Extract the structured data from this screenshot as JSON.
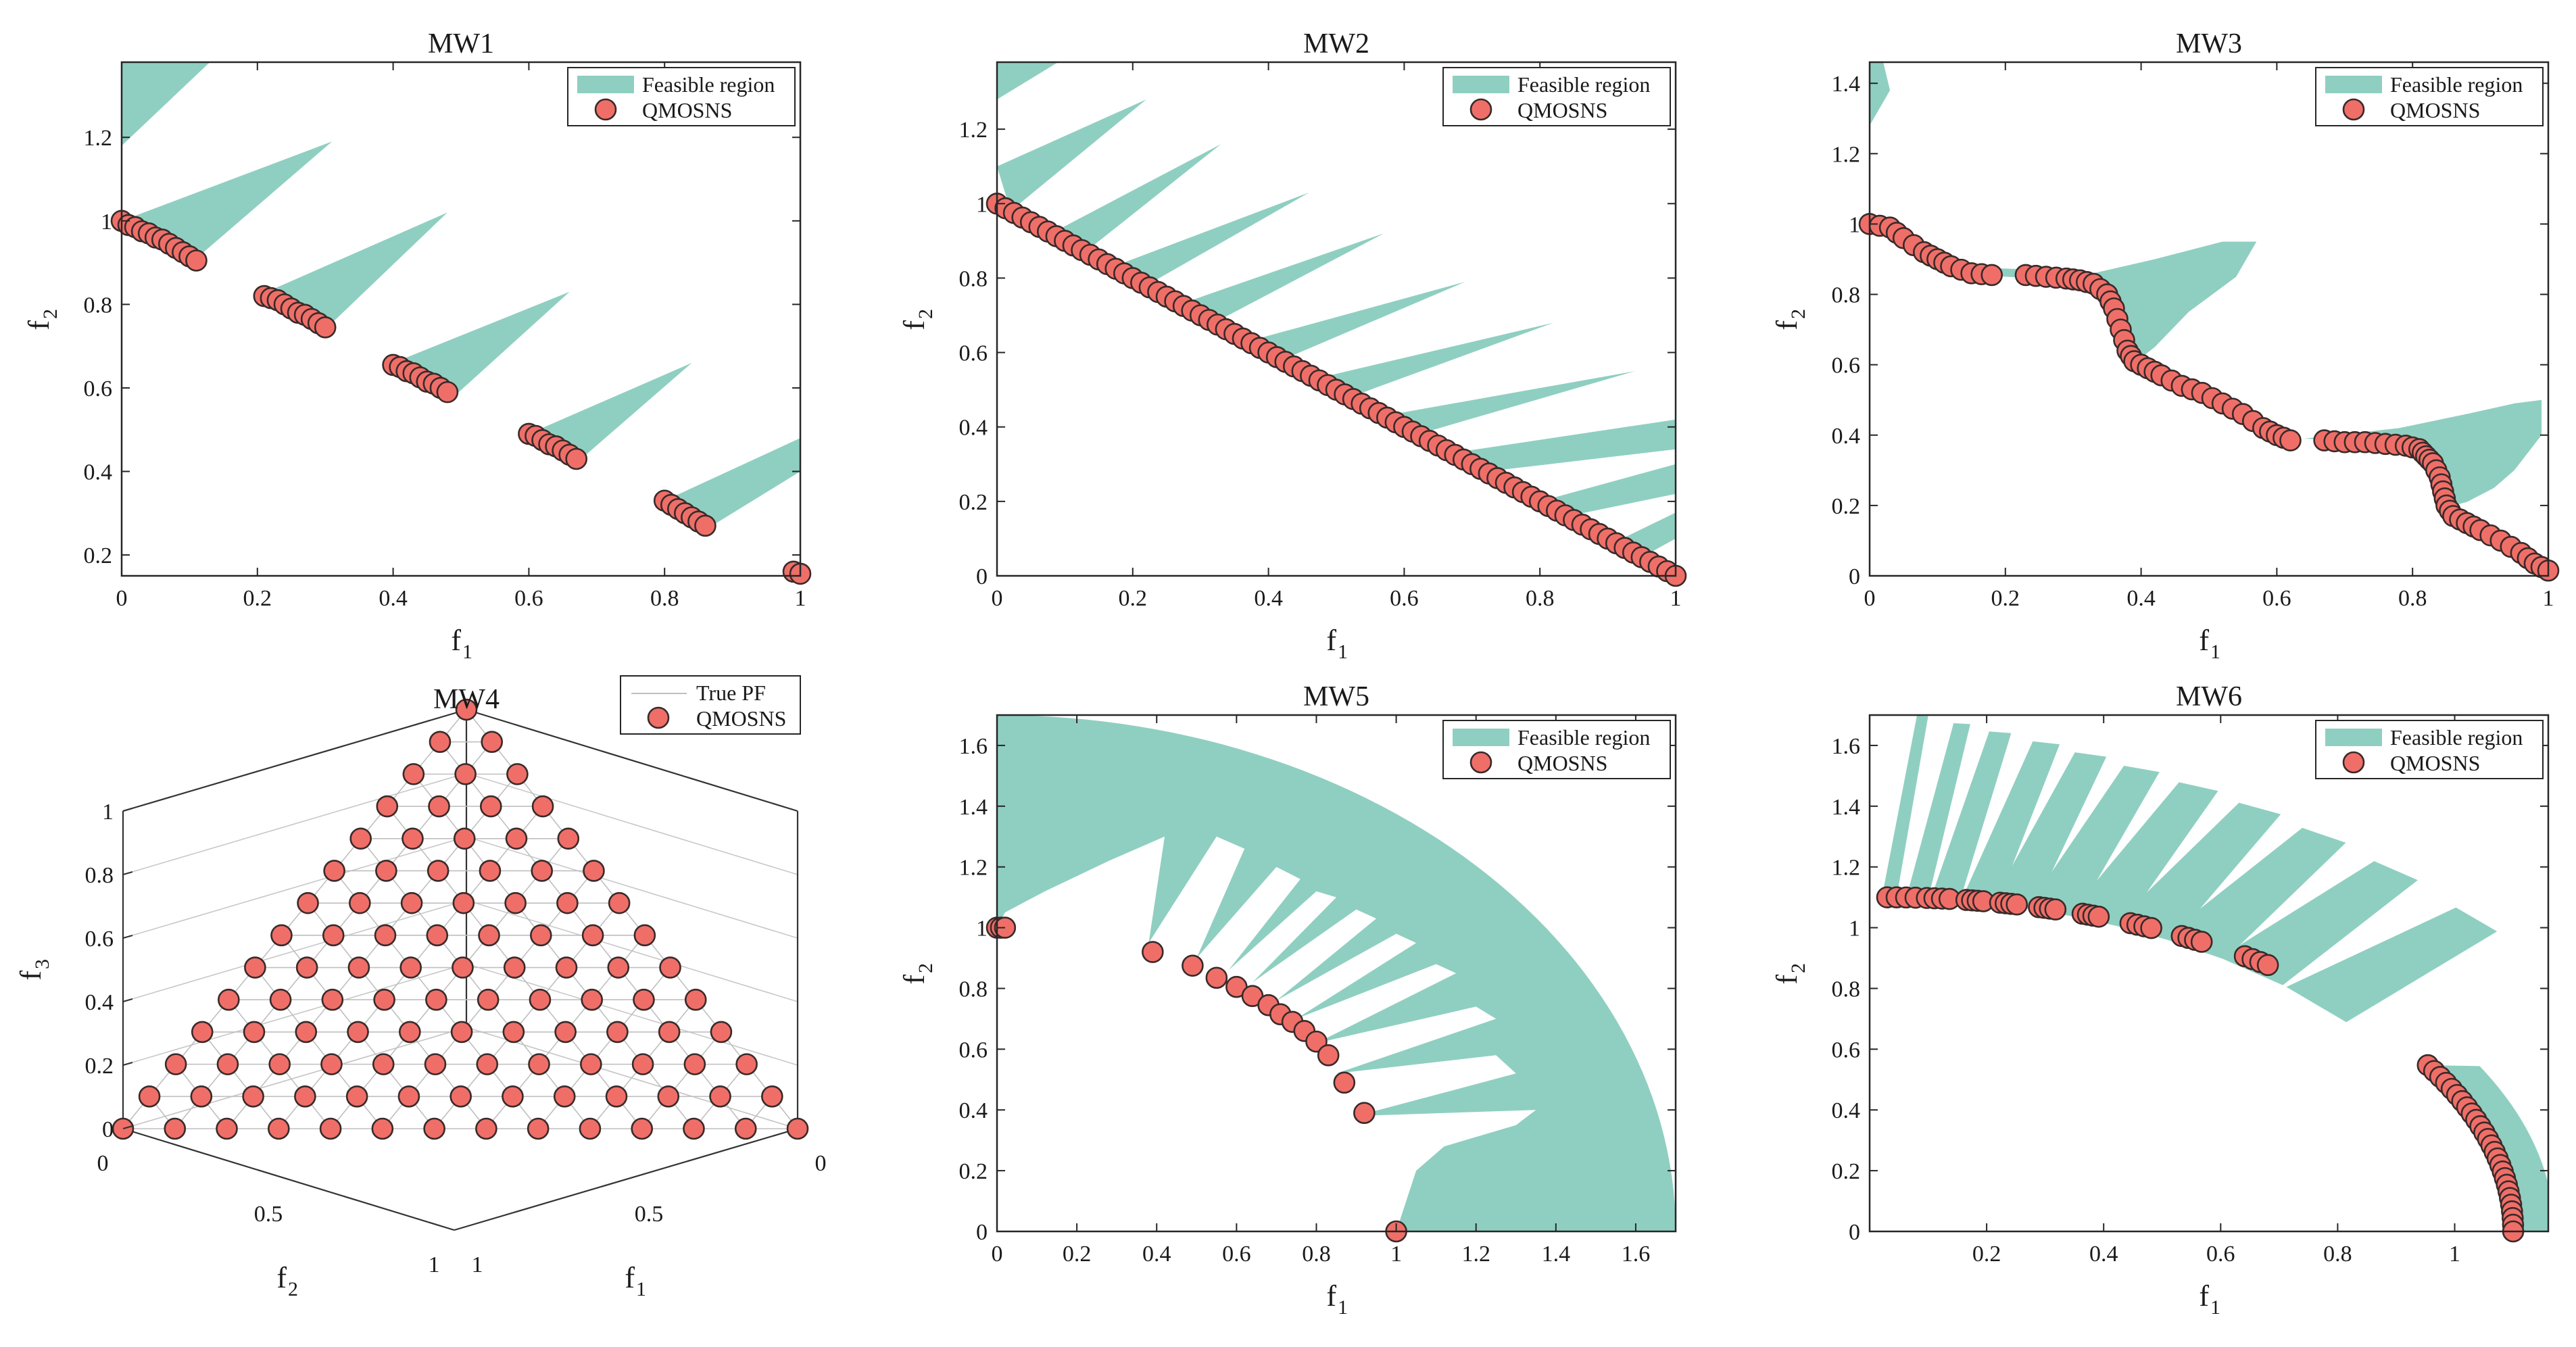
{
  "colors": {
    "feasible": "#8fcfc1",
    "marker_fill": "#ef6f68",
    "marker_edge": "#3a2a2a",
    "axes": "#262626"
  },
  "legend": {
    "feasible": "Feasible region",
    "algorithm": "QMOSNS",
    "true_pf": "True PF"
  },
  "chart_data": [
    {
      "id": "mw1",
      "type": "scatter",
      "title": "MW1",
      "xlabel": "f",
      "xlabel_sub": "1",
      "ylabel": "f",
      "ylabel_sub": "2",
      "xlim": [
        0,
        1
      ],
      "ylim": [
        0.15,
        1.38
      ],
      "xticks": [
        "0",
        "0.2",
        "0.4",
        "0.6",
        "0.8",
        "1"
      ],
      "yticks": [
        "0.2",
        "0.4",
        "0.6",
        "0.8",
        "1",
        "1.2"
      ],
      "legend": [
        "Feasible region",
        "QMOSNS"
      ],
      "feasible_regions": [
        [
          [
            0,
            1.18
          ],
          [
            0.13,
            1.38
          ],
          [
            0,
            1.38
          ]
        ],
        [
          [
            0,
            1.0
          ],
          [
            0.31,
            1.19
          ],
          [
            0.11,
            0.91
          ]
        ],
        [
          [
            0.2,
            0.82
          ],
          [
            0.48,
            1.02
          ],
          [
            0.3,
            0.74
          ]
        ],
        [
          [
            0.4,
            0.66
          ],
          [
            0.66,
            0.83
          ],
          [
            0.49,
            0.58
          ]
        ],
        [
          [
            0.6,
            0.49
          ],
          [
            0.84,
            0.66
          ],
          [
            0.67,
            0.42
          ]
        ],
        [
          [
            0.8,
            0.33
          ],
          [
            1.0,
            0.48
          ],
          [
            1.0,
            0.4
          ],
          [
            0.86,
            0.26
          ]
        ]
      ],
      "points": [
        [
          0.0,
          1.0
        ],
        [
          0.01,
          0.99
        ],
        [
          0.02,
          0.985
        ],
        [
          0.03,
          0.975
        ],
        [
          0.04,
          0.97
        ],
        [
          0.05,
          0.96
        ],
        [
          0.06,
          0.955
        ],
        [
          0.07,
          0.945
        ],
        [
          0.08,
          0.935
        ],
        [
          0.09,
          0.925
        ],
        [
          0.1,
          0.915
        ],
        [
          0.11,
          0.905
        ],
        [
          0.21,
          0.82
        ],
        [
          0.22,
          0.815
        ],
        [
          0.23,
          0.81
        ],
        [
          0.24,
          0.8
        ],
        [
          0.25,
          0.79
        ],
        [
          0.26,
          0.78
        ],
        [
          0.27,
          0.775
        ],
        [
          0.28,
          0.765
        ],
        [
          0.29,
          0.755
        ],
        [
          0.3,
          0.745
        ],
        [
          0.4,
          0.655
        ],
        [
          0.41,
          0.65
        ],
        [
          0.42,
          0.64
        ],
        [
          0.43,
          0.635
        ],
        [
          0.44,
          0.625
        ],
        [
          0.45,
          0.615
        ],
        [
          0.46,
          0.61
        ],
        [
          0.47,
          0.6
        ],
        [
          0.48,
          0.59
        ],
        [
          0.6,
          0.49
        ],
        [
          0.61,
          0.485
        ],
        [
          0.62,
          0.475
        ],
        [
          0.63,
          0.465
        ],
        [
          0.64,
          0.46
        ],
        [
          0.65,
          0.45
        ],
        [
          0.66,
          0.44
        ],
        [
          0.67,
          0.43
        ],
        [
          0.8,
          0.33
        ],
        [
          0.81,
          0.32
        ],
        [
          0.82,
          0.31
        ],
        [
          0.83,
          0.3
        ],
        [
          0.84,
          0.29
        ],
        [
          0.85,
          0.28
        ],
        [
          0.86,
          0.27
        ],
        [
          0.99,
          0.16
        ],
        [
          1.0,
          0.155
        ]
      ]
    },
    {
      "id": "mw2",
      "type": "scatter",
      "title": "MW2",
      "xlabel": "f",
      "xlabel_sub": "1",
      "ylabel": "f",
      "ylabel_sub": "2",
      "xlim": [
        0,
        1
      ],
      "ylim": [
        0,
        1.38
      ],
      "xticks": [
        "0",
        "0.2",
        "0.4",
        "0.6",
        "0.8",
        "1"
      ],
      "yticks": [
        "0",
        "0.2",
        "0.4",
        "0.6",
        "0.8",
        "1",
        "1.2"
      ],
      "legend": [
        "Feasible region",
        "QMOSNS"
      ],
      "feasible_regions": [
        [
          [
            0,
            1.28
          ],
          [
            0.09,
            1.38
          ],
          [
            0,
            1.38
          ]
        ],
        [
          [
            0,
            1.1
          ],
          [
            0.22,
            1.28
          ],
          [
            0.02,
            0.98
          ]
        ],
        [
          [
            0.08,
            0.92
          ],
          [
            0.33,
            1.16
          ],
          [
            0.13,
            0.87
          ]
        ],
        [
          [
            0.17,
            0.83
          ],
          [
            0.46,
            1.03
          ],
          [
            0.22,
            0.78
          ]
        ],
        [
          [
            0.27,
            0.73
          ],
          [
            0.57,
            0.92
          ],
          [
            0.32,
            0.68
          ]
        ],
        [
          [
            0.37,
            0.63
          ],
          [
            0.69,
            0.79
          ],
          [
            0.42,
            0.58
          ]
        ],
        [
          [
            0.47,
            0.53
          ],
          [
            0.82,
            0.68
          ],
          [
            0.52,
            0.48
          ]
        ],
        [
          [
            0.57,
            0.43
          ],
          [
            0.94,
            0.55
          ],
          [
            0.62,
            0.38
          ]
        ],
        [
          [
            0.67,
            0.33
          ],
          [
            1.0,
            0.42
          ],
          [
            1.0,
            0.34
          ],
          [
            0.72,
            0.28
          ]
        ],
        [
          [
            0.8,
            0.2
          ],
          [
            1.0,
            0.3
          ],
          [
            1.0,
            0.22
          ],
          [
            0.84,
            0.16
          ]
        ],
        [
          [
            0.91,
            0.09
          ],
          [
            1.0,
            0.17
          ],
          [
            1.0,
            0.1
          ],
          [
            0.95,
            0.05
          ]
        ]
      ],
      "points": "line:0,1,1,0,80"
    },
    {
      "id": "mw3",
      "type": "scatter",
      "title": "MW3",
      "xlabel": "f",
      "xlabel_sub": "1",
      "ylabel": "f",
      "ylabel_sub": "2",
      "xlim": [
        0,
        1
      ],
      "ylim": [
        0,
        1.46
      ],
      "xticks": [
        "0",
        "0.2",
        "0.4",
        "0.6",
        "0.8",
        "1"
      ],
      "yticks": [
        "0",
        "0.2",
        "0.4",
        "0.6",
        "0.8",
        "1",
        "1.2",
        "1.4"
      ],
      "legend": [
        "Feasible region",
        "QMOSNS"
      ],
      "feasible_regions": [
        [
          [
            0,
            1.28
          ],
          [
            0.03,
            1.38
          ],
          [
            0.02,
            1.46
          ],
          [
            0,
            1.46
          ]
        ],
        [
          [
            0.1,
            0.88
          ],
          [
            0.25,
            0.87
          ],
          [
            0.33,
            0.86
          ],
          [
            0.42,
            0.9
          ],
          [
            0.52,
            0.95
          ],
          [
            0.57,
            0.95
          ],
          [
            0.54,
            0.85
          ],
          [
            0.47,
            0.75
          ],
          [
            0.42,
            0.65
          ],
          [
            0.4,
            0.62
          ],
          [
            0.38,
            0.7
          ],
          [
            0.36,
            0.8
          ],
          [
            0.33,
            0.84
          ],
          [
            0.2,
            0.85
          ],
          [
            0.12,
            0.86
          ]
        ],
        [
          [
            0.64,
            0.39
          ],
          [
            0.78,
            0.42
          ],
          [
            0.88,
            0.46
          ],
          [
            0.95,
            0.49
          ],
          [
            0.99,
            0.5
          ],
          [
            0.99,
            0.4
          ],
          [
            0.95,
            0.3
          ],
          [
            0.92,
            0.25
          ],
          [
            0.88,
            0.21
          ],
          [
            0.86,
            0.2
          ],
          [
            0.85,
            0.28
          ],
          [
            0.83,
            0.36
          ],
          [
            0.78,
            0.38
          ]
        ]
      ],
      "points": "mw3"
    },
    {
      "id": "mw4",
      "type": "scatter3d",
      "title": "MW4",
      "xlabel": "f",
      "xlabel_sub": "1",
      "ylabel": "f",
      "ylabel_sub": "2",
      "zlabel": "f",
      "zlabel_sub": "3",
      "zticks": [
        "0",
        "0.2",
        "0.4",
        "0.6",
        "0.8",
        "1"
      ],
      "xticks": [
        "0",
        "0.5",
        "1"
      ],
      "yticks": [
        "0",
        "0.5",
        "1"
      ],
      "legend": [
        "True PF",
        "QMOSNS"
      ],
      "simplex_divisions": 13
    },
    {
      "id": "mw5",
      "type": "scatter",
      "title": "MW5",
      "xlabel": "f",
      "xlabel_sub": "1",
      "ylabel": "f",
      "ylabel_sub": "2",
      "xlim": [
        0,
        1.7
      ],
      "ylim": [
        0,
        1.7
      ],
      "xticks": [
        "0",
        "0.2",
        "0.4",
        "0.6",
        "0.8",
        "1",
        "1.2",
        "1.4",
        "1.6"
      ],
      "yticks": [
        "0",
        "0.2",
        "0.4",
        "0.6",
        "0.8",
        "1",
        "1.2",
        "1.4",
        "1.6"
      ],
      "legend": [
        "Feasible region",
        "QMOSNS"
      ],
      "points": [
        [
          0.0,
          1.0
        ],
        [
          0.01,
          1.0
        ],
        [
          0.02,
          1.0
        ],
        [
          0.39,
          0.92
        ],
        [
          0.49,
          0.875
        ],
        [
          0.55,
          0.835
        ],
        [
          0.6,
          0.805
        ],
        [
          0.64,
          0.775
        ],
        [
          0.68,
          0.745
        ],
        [
          0.71,
          0.715
        ],
        [
          0.74,
          0.69
        ],
        [
          0.77,
          0.66
        ],
        [
          0.8,
          0.625
        ],
        [
          0.83,
          0.58
        ],
        [
          0.87,
          0.49
        ],
        [
          0.92,
          0.39
        ],
        [
          1.0,
          0.0
        ]
      ]
    },
    {
      "id": "mw6",
      "type": "scatter",
      "title": "MW6",
      "xlabel": "f",
      "xlabel_sub": "1",
      "ylabel": "f",
      "ylabel_sub": "2",
      "xlim": [
        0,
        1.16
      ],
      "ylim": [
        0,
        1.7
      ],
      "xticks": [
        "0.2",
        "0.4",
        "0.6",
        "0.8",
        "1"
      ],
      "yticks": [
        "0",
        "0.2",
        "0.4",
        "0.6",
        "0.8",
        "1",
        "1.2",
        "1.4",
        "1.6"
      ],
      "legend": [
        "Feasible region",
        "QMOSNS"
      ],
      "points": "mw6"
    }
  ]
}
